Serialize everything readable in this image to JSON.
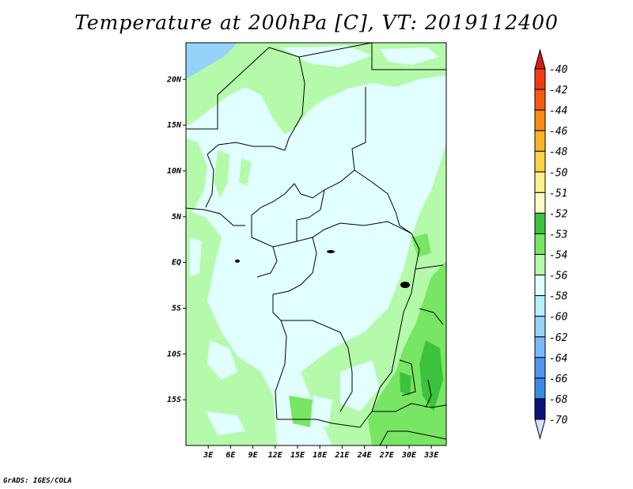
{
  "title": "Temperature at 200hPa [C], VT: 2019112400",
  "credit": "GrADS: IGES/COLA",
  "map": {
    "lat_range": [
      -20,
      24
    ],
    "lon_range": [
      0,
      35
    ],
    "lat_ticks": [
      {
        "label": "20N",
        "value": 20
      },
      {
        "label": "15N",
        "value": 15
      },
      {
        "label": "10N",
        "value": 10
      },
      {
        "label": "5N",
        "value": 5
      },
      {
        "label": "EQ",
        "value": 0
      },
      {
        "label": "5S",
        "value": -5
      },
      {
        "label": "10S",
        "value": -10
      },
      {
        "label": "15S",
        "value": -15
      }
    ],
    "lon_ticks": [
      {
        "label": "3E",
        "value": 3
      },
      {
        "label": "6E",
        "value": 6
      },
      {
        "label": "9E",
        "value": 9
      },
      {
        "label": "12E",
        "value": 12
      },
      {
        "label": "15E",
        "value": 15
      },
      {
        "label": "18E",
        "value": 18
      },
      {
        "label": "21E",
        "value": 21
      },
      {
        "label": "24E",
        "value": 24
      },
      {
        "label": "27E",
        "value": 27
      },
      {
        "label": "30E",
        "value": 30
      },
      {
        "label": "33E",
        "value": 33
      }
    ]
  },
  "colorbar": {
    "levels": [
      {
        "label": "-40",
        "color": "#f03c14"
      },
      {
        "label": "-42",
        "color": "#f55a14"
      },
      {
        "label": "-44",
        "color": "#f88c14"
      },
      {
        "label": "-46",
        "color": "#fab428"
      },
      {
        "label": "-48",
        "color": "#fcd246"
      },
      {
        "label": "-50",
        "color": "#fff08c"
      },
      {
        "label": "-51",
        "color": "#fffac8"
      },
      {
        "label": "-52",
        "color": "#3cc23c"
      },
      {
        "label": "-53",
        "color": "#78e664"
      },
      {
        "label": "-54",
        "color": "#b4faaa"
      },
      {
        "label": "-56",
        "color": "#e1ffff"
      },
      {
        "label": "-58",
        "color": "#b4f0fa"
      },
      {
        "label": "-60",
        "color": "#96d2fa"
      },
      {
        "label": "-62",
        "color": "#78b9fa"
      },
      {
        "label": "-64",
        "color": "#5096f0"
      },
      {
        "label": "-66",
        "color": "#3c8ce6"
      },
      {
        "label": "-68",
        "color": "#1e6ed2"
      },
      {
        "label": "-70",
        "color": "#1450b4"
      }
    ],
    "top_arrow_color": "#d21e14",
    "bottom_arrow_color": "#dcdcff",
    "bottom_segment_color": "#0a1478"
  }
}
